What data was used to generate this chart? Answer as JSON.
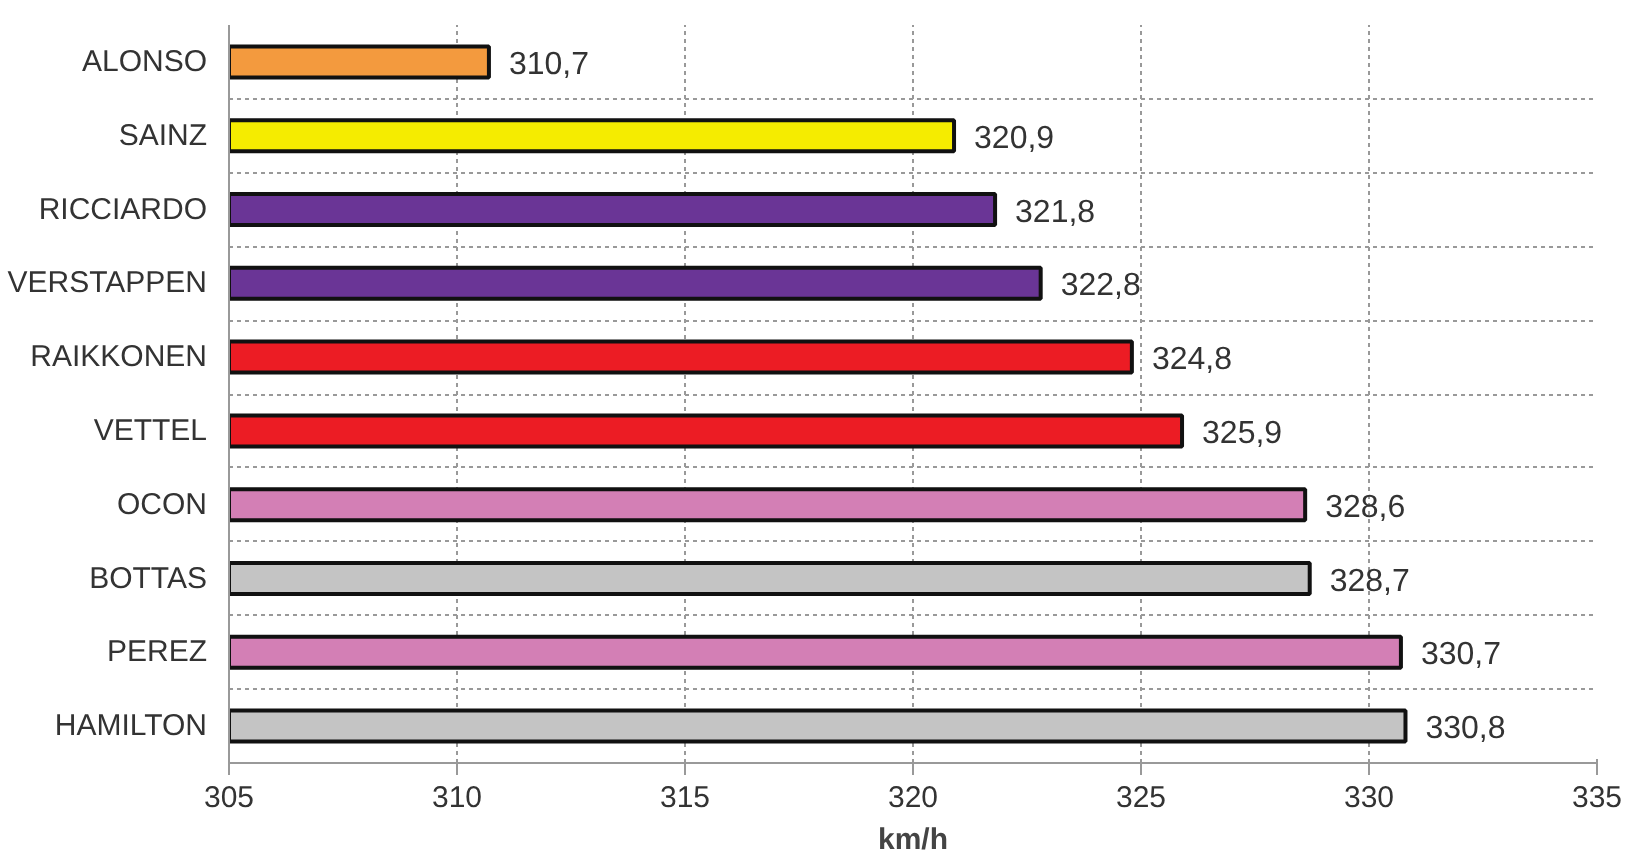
{
  "chart_data": {
    "type": "bar",
    "orientation": "horizontal",
    "xlabel": "km/h",
    "categories": [
      "ALONSO",
      "SAINZ",
      "RICCIARDO",
      "VERSTAPPEN",
      "RAIKKONEN",
      "VETTEL",
      "OCON",
      "BOTTAS",
      "PEREZ",
      "HAMILTON"
    ],
    "values": [
      310.7,
      320.9,
      321.8,
      322.8,
      324.8,
      325.9,
      328.6,
      328.7,
      330.7,
      330.8
    ],
    "value_labels": [
      "310,7",
      "320,9",
      "321,8",
      "322,8",
      "324,8",
      "325,9",
      "328,6",
      "328,7",
      "330,7",
      "330,8"
    ],
    "colors": [
      "#f39a3e",
      "#f5ec00",
      "#6a3596",
      "#6a3596",
      "#ec1c24",
      "#ec1c24",
      "#d37fb5",
      "#c4c4c4",
      "#d37fb5",
      "#c4c4c4"
    ],
    "xlim": [
      305,
      335
    ],
    "xticks": [
      305,
      310,
      315,
      320,
      325,
      330,
      335
    ],
    "grid": true
  }
}
